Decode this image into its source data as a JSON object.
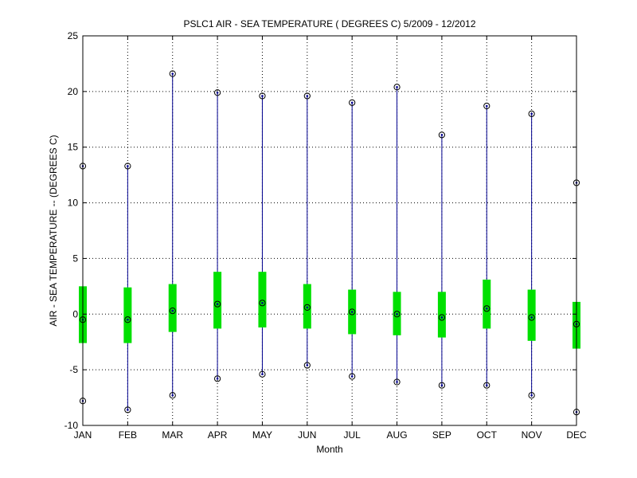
{
  "chart_data": {
    "type": "box",
    "title": "PSLC1  AIR - SEA TEMPERATURE ( DEGREES C) 5/2009 - 12/2012",
    "xlabel": "Month",
    "ylabel": "AIR - SEA TEMPERATURE -- (DEGREES C)",
    "ylim": [
      -10,
      25
    ],
    "yticks": [
      -10,
      -5,
      0,
      5,
      10,
      15,
      20,
      25
    ],
    "ytick_labels": [
      "-10",
      "-5",
      "0",
      "5",
      "10",
      "15",
      "20",
      "25"
    ],
    "grid": true,
    "categories": [
      "JAN",
      "FEB",
      "MAR",
      "APR",
      "MAY",
      "JUN",
      "JUL",
      "AUG",
      "SEP",
      "OCT",
      "NOV",
      "DEC"
    ],
    "min": [
      -7.8,
      -8.6,
      -7.3,
      -5.8,
      -5.4,
      -4.6,
      -5.6,
      -6.1,
      -6.4,
      -6.4,
      -7.3,
      -8.8
    ],
    "q1": [
      -2.6,
      -2.6,
      -1.6,
      -1.3,
      -1.2,
      -1.3,
      -1.8,
      -1.9,
      -2.1,
      -1.3,
      -2.4,
      -3.1
    ],
    "median": [
      -0.5,
      -0.5,
      0.3,
      0.9,
      1.0,
      0.6,
      0.2,
      0.0,
      -0.3,
      0.5,
      -0.3,
      -0.9
    ],
    "q3": [
      2.5,
      2.4,
      2.7,
      3.8,
      3.8,
      2.7,
      2.2,
      2.0,
      2.0,
      3.1,
      2.2,
      1.1
    ],
    "max": [
      13.3,
      13.3,
      21.6,
      19.9,
      19.6,
      19.6,
      19.0,
      20.4,
      16.1,
      18.7,
      18.0,
      11.8
    ],
    "colors": {
      "whisker": "#00008f",
      "box": "#00e000",
      "marker": "#000000",
      "grid": "#000000"
    }
  }
}
